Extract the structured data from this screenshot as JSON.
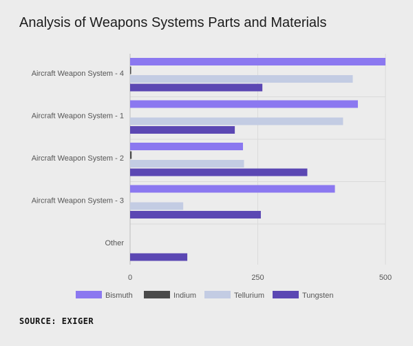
{
  "chart_data": {
    "type": "bar",
    "orientation": "horizontal",
    "title": "Analysis of Weapons Systems Parts and Materials",
    "categories": [
      "Aircraft Weapon System - 4",
      "Aircraft Weapon System - 1",
      "Aircraft Weapon System - 2",
      "Aircraft Weapon System - 3",
      "Other"
    ],
    "series": [
      {
        "name": "Bismuth",
        "color": "#8b78f0",
        "values": [
          500,
          446,
          221,
          401,
          0
        ]
      },
      {
        "name": "Indium",
        "color": "#4a4a4a",
        "values": [
          2,
          0,
          3,
          0,
          0
        ]
      },
      {
        "name": "Tellurium",
        "color": "#c3cce3",
        "values": [
          436,
          417,
          223,
          104,
          0
        ]
      },
      {
        "name": "Tungsten",
        "color": "#5b47b3",
        "values": [
          259,
          205,
          347,
          256,
          112
        ]
      }
    ],
    "xlim": [
      0,
      500
    ],
    "xticks": [
      "0",
      "250",
      "500"
    ],
    "xlabel": "",
    "ylabel": "",
    "legend_position": "bottom",
    "grid": true
  },
  "source": "SOURCE: EXIGER"
}
